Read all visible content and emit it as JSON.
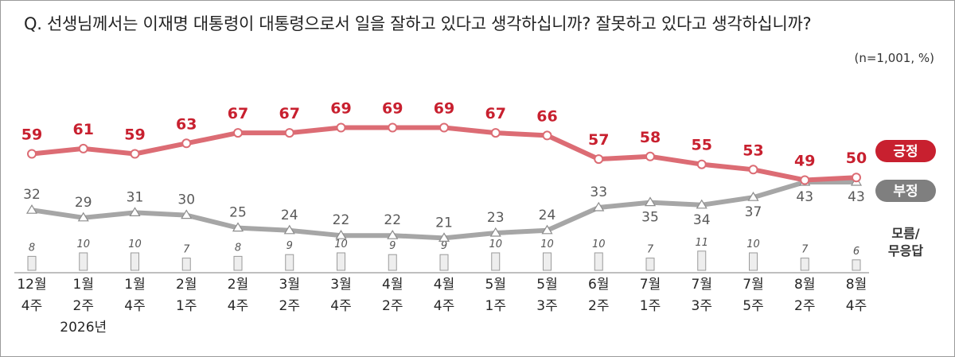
{
  "question": "Q. 선생님께서는 이재명 대통령이 대통령으로서 일을 잘하고 있다고 생각하십니까? 잘못하고 있다고 생각하십니까?",
  "note": "(n=1,001,  %)",
  "chart_data": {
    "type": "line",
    "x": [
      {
        "month": "12월",
        "week": "4주"
      },
      {
        "month": "1월",
        "week": "2주"
      },
      {
        "month": "1월",
        "week": "4주"
      },
      {
        "month": "2월",
        "week": "1주"
      },
      {
        "month": "2월",
        "week": "4주"
      },
      {
        "month": "3월",
        "week": "2주"
      },
      {
        "month": "3월",
        "week": "4주"
      },
      {
        "month": "4월",
        "week": "2주"
      },
      {
        "month": "4월",
        "week": "4주"
      },
      {
        "month": "5월",
        "week": "1주"
      },
      {
        "month": "5월",
        "week": "3주"
      },
      {
        "month": "6월",
        "week": "2주"
      },
      {
        "month": "7월",
        "week": "1주"
      },
      {
        "month": "7월",
        "week": "3주"
      },
      {
        "month": "7월",
        "week": "5주"
      },
      {
        "month": "8월",
        "week": "2주"
      },
      {
        "month": "8월",
        "week": "4주"
      }
    ],
    "year_label": "2026년",
    "series": [
      {
        "name": "긍정",
        "color": "#c8202f",
        "line_color": "#dc6c74",
        "values": [
          59,
          61,
          59,
          63,
          67,
          67,
          69,
          69,
          69,
          67,
          66,
          57,
          58,
          55,
          53,
          49,
          50
        ]
      },
      {
        "name": "부정",
        "color": "#7f7f7f",
        "line_color": "#a6a6a6",
        "values": [
          32,
          29,
          31,
          30,
          25,
          24,
          22,
          22,
          21,
          23,
          24,
          33,
          35,
          34,
          37,
          43,
          43
        ]
      },
      {
        "name": "모름/\n무응답",
        "type": "bar",
        "color": "#eeeeee",
        "values": [
          8,
          10,
          10,
          7,
          8,
          9,
          10,
          9,
          9,
          10,
          10,
          10,
          7,
          11,
          10,
          7,
          6
        ]
      }
    ]
  }
}
